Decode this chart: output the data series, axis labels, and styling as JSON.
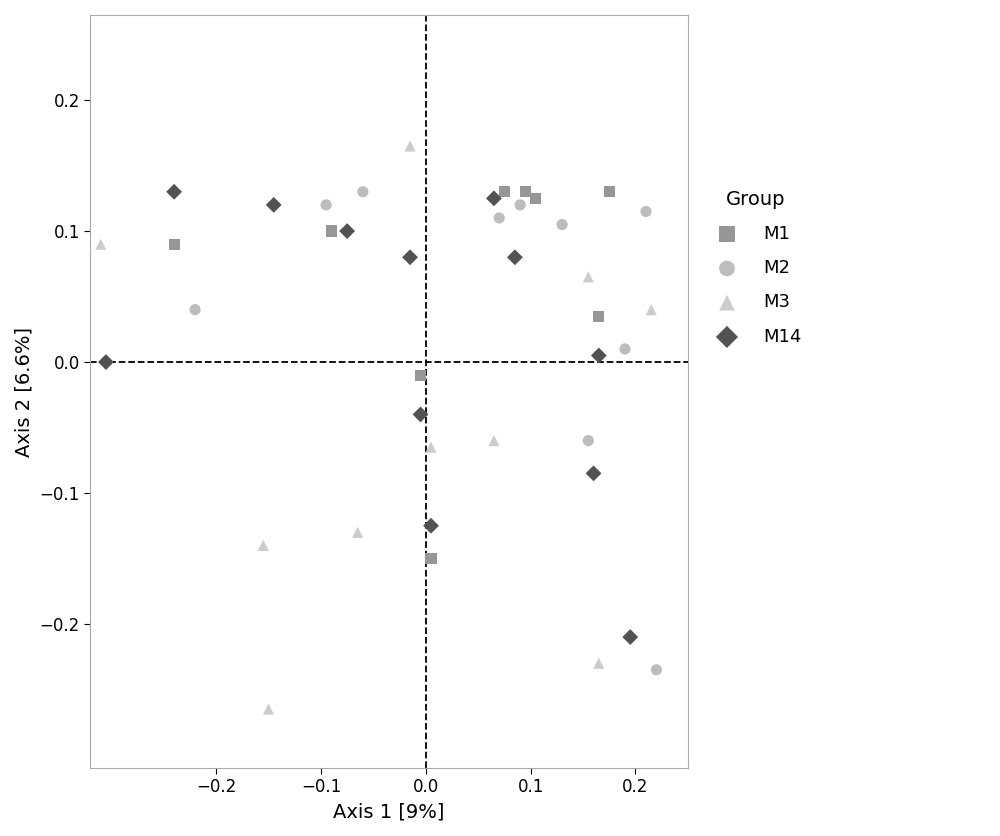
{
  "title": "",
  "xlabel": "Axis 1 [9%]",
  "ylabel": "Axis 2 [6.6%]",
  "xlim": [
    -0.32,
    0.25
  ],
  "ylim": [
    -0.31,
    0.265
  ],
  "groups": {
    "M1": {
      "color": "#969696",
      "marker": "s",
      "x": [
        -0.24,
        -0.09,
        -0.005,
        0.075,
        0.095,
        0.105,
        0.165,
        0.175,
        0.005
      ],
      "y": [
        0.09,
        0.1,
        -0.01,
        0.13,
        0.13,
        0.125,
        0.035,
        0.13,
        -0.15
      ]
    },
    "M2": {
      "color": "#bdbdbd",
      "marker": "o",
      "x": [
        -0.22,
        -0.095,
        -0.06,
        0.07,
        0.09,
        0.13,
        0.155,
        0.19,
        0.21,
        0.22
      ],
      "y": [
        0.04,
        0.12,
        0.13,
        0.11,
        0.12,
        0.105,
        -0.06,
        0.01,
        0.115,
        -0.235
      ]
    },
    "M3": {
      "color": "#cccccc",
      "marker": "^",
      "x": [
        -0.31,
        -0.155,
        -0.15,
        -0.065,
        -0.015,
        0.005,
        0.065,
        0.155,
        0.165,
        0.215
      ],
      "y": [
        0.09,
        -0.14,
        -0.265,
        -0.13,
        0.165,
        -0.065,
        -0.06,
        0.065,
        -0.23,
        0.04
      ]
    },
    "M14": {
      "color": "#525252",
      "marker": "D",
      "x": [
        -0.305,
        -0.24,
        -0.145,
        -0.075,
        -0.015,
        -0.005,
        0.005,
        0.065,
        0.085,
        0.16,
        0.165,
        0.195
      ],
      "y": [
        0.0,
        0.13,
        0.12,
        0.1,
        0.08,
        -0.04,
        -0.125,
        0.125,
        0.08,
        -0.085,
        0.005,
        -0.21
      ]
    }
  },
  "xticks": [
    -0.2,
    -0.1,
    0.0,
    0.1,
    0.2
  ],
  "yticks": [
    -0.2,
    -0.1,
    0.0,
    0.1,
    0.2
  ],
  "background_color": "#ffffff",
  "legend_title": "Group",
  "legend_title_fontsize": 14,
  "legend_fontsize": 13,
  "axis_label_fontsize": 14,
  "tick_fontsize": 12,
  "marker_size": 65,
  "spine_color": "#aaaaaa",
  "dashed_line_color": "black",
  "dashed_linewidth": 1.3
}
